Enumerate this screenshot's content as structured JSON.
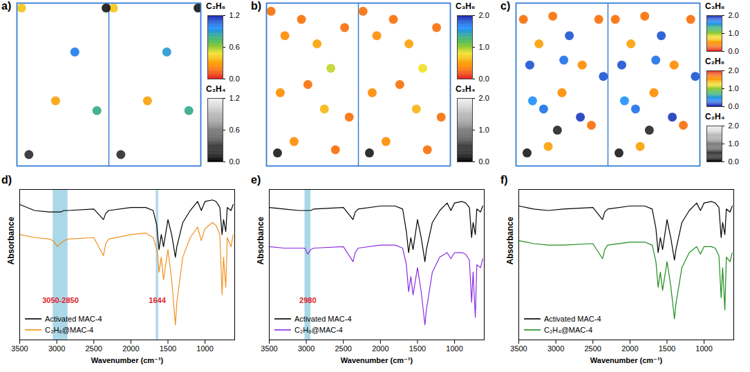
{
  "chart_data": [
    {
      "type": "scatter",
      "title": "a)",
      "xlim": [
        0,
        2
      ],
      "ylim": [
        0,
        1
      ],
      "xticks": [
        0,
        1,
        2
      ],
      "yticks": [
        0,
        1
      ],
      "grid": true,
      "tick_labels": false,
      "series": [
        {
          "name": "C₂H₆",
          "x": [
            0.05,
            0.63,
            0.87,
            0.42,
            1.05,
            1.63,
            1.87,
            1.42
          ],
          "y": [
            0.97,
            0.7,
            0.34,
            0.4,
            0.97,
            0.7,
            0.34,
            0.4
          ],
          "density": [
            0.4,
            1.0,
            0.8,
            0.3,
            0.4,
            0.9,
            0.8,
            0.3
          ],
          "colorbar": {
            "lim": [
              0,
              1.2
            ],
            "ticks": [
              {
                "value": 0,
                "label": "0.0"
              },
              0.6,
              1.2
            ],
            "colors": [
              "#e41a1c",
              "#ff8c00",
              "#f0e020",
              "#3cb44b",
              "#1e90ff",
              "#1a1aa6"
            ]
          }
        },
        {
          "name": "C₂H₄",
          "x": [
            0.13,
            0.97,
            1.13,
            1.97
          ],
          "y": [
            0.07,
            0.97,
            0.07,
            0.97
          ],
          "density": [
            0.2,
            0.1,
            0.2,
            0.1
          ],
          "colorbar": {
            "lim": [
              0,
              1.2
            ],
            "ticks": [
              {
                "value": 0,
                "label": "0.0"
              },
              0.6,
              1.2
            ],
            "colors": [
              "#000000",
              "#555555",
              "#aaaaaa",
              "#f2f2f2"
            ]
          }
        }
      ]
    },
    {
      "type": "scatter",
      "title": "b)",
      "xlim": [
        0,
        2
      ],
      "ylim": [
        0,
        1
      ],
      "xticks": [
        0,
        1,
        2
      ],
      "yticks": [
        0,
        1
      ],
      "grid": true,
      "tick_labels": false,
      "series": [
        {
          "name": "C₃H₆",
          "x": [
            0.05,
            0.2,
            0.38,
            0.55,
            0.7,
            0.85,
            0.15,
            0.45,
            0.63,
            0.9,
            0.3,
            0.75,
            1.05,
            1.2,
            1.38,
            1.55,
            1.7,
            1.85,
            1.15,
            1.45,
            1.63,
            1.9,
            1.3,
            1.75
          ],
          "y": [
            0.95,
            0.8,
            0.9,
            0.75,
            0.6,
            0.85,
            0.45,
            0.5,
            0.35,
            0.3,
            0.15,
            0.1,
            0.95,
            0.8,
            0.9,
            0.75,
            0.6,
            0.85,
            0.45,
            0.5,
            0.35,
            0.3,
            0.15,
            0.1
          ],
          "density": [
            0.3,
            0.4,
            0.3,
            0.5,
            0.9,
            0.3,
            0.4,
            0.3,
            0.6,
            0.3,
            0.4,
            0.3,
            0.3,
            0.4,
            0.3,
            0.5,
            0.8,
            0.3,
            0.4,
            0.3,
            0.6,
            0.3,
            0.4,
            0.3
          ],
          "colorbar": {
            "lim": [
              0,
              2
            ],
            "ticks": [
              {
                "value": 0,
                "label": "0.0"
              },
              {
                "value": 1,
                "label": "1.0"
              },
              {
                "value": 2,
                "label": "2.0"
              }
            ],
            "colors": [
              "#e41a1c",
              "#ff8c00",
              "#f0e020",
              "#3cb44b",
              "#1e90ff",
              "#1a1aa6"
            ]
          }
        },
        {
          "name": "C₂H₄",
          "x": [
            0.12,
            1.12
          ],
          "y": [
            0.08,
            0.08
          ],
          "density": [
            0.2,
            0.2
          ],
          "colorbar": {
            "lim": [
              0,
              2
            ],
            "ticks": [
              {
                "value": 0,
                "label": "0.0"
              },
              {
                "value": 1,
                "label": "1.0"
              },
              {
                "value": 2,
                "label": "2.0"
              }
            ],
            "colors": [
              "#000000",
              "#555555",
              "#aaaaaa",
              "#f2f2f2"
            ]
          }
        }
      ]
    },
    {
      "type": "scatter",
      "title": "c)",
      "xlim": [
        0,
        2
      ],
      "ylim": [
        0,
        1
      ],
      "xticks": [
        0,
        1,
        2
      ],
      "yticks": [
        0,
        1
      ],
      "grid": true,
      "tick_labels": false,
      "series": [
        {
          "name": "C₃H₆",
          "x": [
            0.08,
            0.25,
            0.4,
            0.58,
            0.72,
            0.9,
            0.18,
            0.5,
            0.82,
            0.35,
            1.08,
            1.25,
            1.4,
            1.58,
            1.72,
            1.9,
            1.18,
            1.5,
            1.82,
            1.35
          ],
          "y": [
            0.9,
            0.75,
            0.92,
            0.8,
            0.62,
            0.9,
            0.4,
            0.45,
            0.25,
            0.12,
            0.9,
            0.75,
            0.92,
            0.8,
            0.62,
            0.9,
            0.4,
            0.45,
            0.25,
            0.12
          ],
          "density": [
            0.3,
            0.5,
            0.3,
            1.8,
            0.4,
            0.3,
            1.6,
            0.4,
            0.3,
            0.5,
            0.3,
            0.5,
            0.3,
            1.8,
            0.4,
            0.3,
            1.6,
            0.4,
            0.3,
            0.5
          ],
          "colorbar": {
            "lim": [
              0,
              2
            ],
            "ticks": [
              {
                "value": 0,
                "label": "0.0"
              },
              {
                "value": 1,
                "label": "1.0"
              },
              {
                "value": 2,
                "label": "2.0"
              }
            ],
            "colors": [
              "#e41a1c",
              "#ff8c00",
              "#f0e020",
              "#3cb44b",
              "#1e90ff",
              "#1a1aa6"
            ]
          }
        },
        {
          "name": "C₂H₆",
          "x": [
            0.15,
            0.52,
            0.7,
            0.95,
            0.3,
            1.15,
            1.52,
            1.7,
            1.95,
            1.3
          ],
          "y": [
            0.62,
            0.65,
            0.3,
            0.55,
            0.35,
            0.62,
            0.65,
            0.3,
            0.55,
            0.35
          ],
          "density": [
            0.2,
            0.3,
            0.1,
            0.2,
            0.3,
            0.2,
            0.3,
            0.1,
            0.2,
            0.3
          ],
          "colorbar": {
            "lim": [
              0,
              2
            ],
            "ticks": [
              {
                "value": 0,
                "label": "0.0"
              },
              {
                "value": 1,
                "label": "1.0"
              },
              {
                "value": 2,
                "label": "2.0"
              }
            ],
            "colors": [
              "#1a1aa6",
              "#1e90ff",
              "#3cb44b",
              "#f0e020",
              "#ff8c00",
              "#e41a1c"
            ]
          }
        },
        {
          "name": "C₂H₄",
          "x": [
            0.12,
            0.45,
            1.12,
            1.45
          ],
          "y": [
            0.08,
            0.22,
            0.08,
            0.22
          ],
          "density": [
            0.2,
            0.3,
            0.2,
            0.3
          ],
          "colorbar": {
            "lim": [
              0,
              2
            ],
            "ticks": [
              {
                "value": 0,
                "label": "0.0"
              },
              {
                "value": 1,
                "label": "1.0"
              },
              {
                "value": 2,
                "label": "2.0"
              }
            ],
            "colors": [
              "#000000",
              "#555555",
              "#aaaaaa",
              "#f2f2f2"
            ]
          }
        }
      ]
    },
    {
      "type": "line",
      "title": "d)",
      "xlabel": "Wavenumber (cm⁻¹)",
      "ylabel": "Absorbance",
      "xlim": [
        3500,
        600
      ],
      "xticks": [
        3500,
        3000,
        2500,
        2000,
        1500,
        1000
      ],
      "ylim": [
        0,
        100
      ],
      "yticks": [],
      "tick_labels": "x",
      "legend": "bottom-left",
      "x": [
        3500,
        3300,
        3100,
        3050,
        2990,
        2950,
        2900,
        2850,
        2500,
        2370,
        2340,
        2300,
        2000,
        1800,
        1700,
        1650,
        1644,
        1620,
        1590,
        1560,
        1500,
        1450,
        1400,
        1380,
        1300,
        1200,
        1100,
        1050,
        1000,
        900,
        850,
        800,
        770,
        750,
        720,
        700,
        650,
        620
      ],
      "series": [
        {
          "name": "Activated MAC-4",
          "color": "#000000",
          "values": [
            90,
            86,
            85,
            85,
            85,
            85,
            86,
            86,
            87,
            80,
            84,
            86,
            88,
            88,
            86,
            76,
            72,
            60,
            70,
            62,
            80,
            70,
            55,
            62,
            78,
            86,
            92,
            86,
            92,
            93,
            92,
            88,
            70,
            80,
            72,
            88,
            86,
            90
          ]
        },
        {
          "name": "C₃H₆@MAC-4",
          "color": "#f0901e",
          "values": [
            70,
            68,
            67,
            66,
            62,
            64,
            66,
            67,
            68,
            56,
            64,
            67,
            70,
            71,
            68,
            60,
            58,
            45,
            55,
            40,
            60,
            40,
            10,
            25,
            55,
            68,
            75,
            66,
            74,
            78,
            76,
            70,
            30,
            55,
            35,
            68,
            62,
            70
          ]
        }
      ],
      "annotations": [
        {
          "text": "3050-2850",
          "x": [
            3050,
            2850
          ]
        },
        {
          "text": "1644",
          "x": [
            1660,
            1628
          ]
        }
      ]
    },
    {
      "type": "line",
      "title": "e)",
      "xlabel": "Wavenumber (cm⁻¹)",
      "ylabel": "Absorbance",
      "xlim": [
        3500,
        600
      ],
      "xticks": [
        3500,
        3000,
        2500,
        2000,
        1500,
        1000
      ],
      "ylim": [
        0,
        100
      ],
      "yticks": [],
      "tick_labels": "x",
      "legend": "bottom-left",
      "x": [
        3500,
        3300,
        3100,
        3020,
        2980,
        2940,
        2900,
        2500,
        2370,
        2340,
        2300,
        2000,
        1800,
        1700,
        1650,
        1620,
        1590,
        1560,
        1500,
        1450,
        1400,
        1380,
        1300,
        1200,
        1100,
        1050,
        1000,
        900,
        850,
        800,
        770,
        750,
        720,
        700,
        650,
        620
      ],
      "series": [
        {
          "name": "Activated MAC-4",
          "color": "#000000",
          "values": [
            88,
            87,
            86,
            86,
            86,
            86,
            87,
            88,
            80,
            85,
            87,
            89,
            89,
            87,
            72,
            58,
            68,
            60,
            80,
            68,
            52,
            60,
            78,
            86,
            91,
            86,
            91,
            92,
            91,
            88,
            68,
            78,
            70,
            87,
            85,
            89
          ]
        },
        {
          "name": "C₂H₆@MAC-4",
          "color": "#8a2be2",
          "values": [
            62,
            61,
            61,
            61,
            57,
            60,
            61,
            62,
            52,
            58,
            61,
            63,
            63,
            61,
            50,
            32,
            42,
            30,
            48,
            32,
            10,
            20,
            45,
            55,
            58,
            54,
            58,
            58,
            57,
            53,
            25,
            45,
            15,
            50,
            48,
            54
          ]
        }
      ],
      "annotations": [
        {
          "text": "2980",
          "x": [
            3020,
            2940
          ]
        }
      ]
    },
    {
      "type": "line",
      "title": "f)",
      "xlabel": "Wavenumber (cm⁻¹)",
      "ylabel": "Absorbance",
      "xlim": [
        3500,
        600
      ],
      "xticks": [
        3500,
        3000,
        2500,
        2000,
        1500,
        1000
      ],
      "ylim": [
        0,
        100
      ],
      "yticks": [],
      "tick_labels": "x",
      "legend": "bottom-left",
      "x": [
        3500,
        3300,
        3100,
        2900,
        2500,
        2370,
        2340,
        2300,
        2000,
        1800,
        1700,
        1650,
        1620,
        1590,
        1560,
        1500,
        1450,
        1400,
        1380,
        1300,
        1200,
        1100,
        1050,
        1000,
        900,
        850,
        800,
        770,
        750,
        720,
        700,
        650,
        620
      ],
      "series": [
        {
          "name": "Activated MAC-4",
          "color": "#000000",
          "values": [
            89,
            87,
            86,
            87,
            88,
            80,
            85,
            87,
            89,
            89,
            87,
            74,
            58,
            68,
            60,
            80,
            68,
            53,
            60,
            78,
            86,
            91,
            86,
            91,
            92,
            91,
            88,
            68,
            78,
            70,
            87,
            85,
            89
          ]
        },
        {
          "name": "C₂H₄@MAC-4",
          "color": "#1e8c1e",
          "values": [
            66,
            64,
            63,
            63,
            64,
            54,
            60,
            63,
            65,
            65,
            63,
            52,
            35,
            45,
            33,
            52,
            36,
            14,
            24,
            48,
            58,
            62,
            57,
            62,
            62,
            61,
            56,
            28,
            48,
            20,
            55,
            52,
            58
          ]
        }
      ],
      "annotations": []
    }
  ]
}
